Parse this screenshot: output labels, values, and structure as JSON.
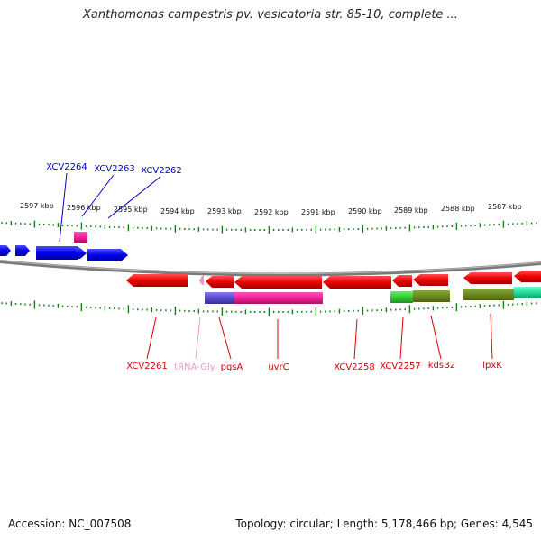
{
  "title": "Xanthomonas campestris pv. vesicatoria str. 85-10, complete ...",
  "footer": {
    "accession": "Accession: NC_007508",
    "topology": "Topology: circular; Length: 5,178,466 bp; Genes: 4,545"
  },
  "colors": {
    "backbone": "#888888",
    "ticks": "#1a7a1a",
    "forward_gene": "#0000ee",
    "reverse_gene": "#ee0000",
    "trna": "#ee88cc",
    "domain_purple": "#6655cc",
    "domain_magenta": "#ee2299",
    "domain_olive": "#6b8a22",
    "domain_green": "#33cc33",
    "domain_teal": "#22dd99"
  },
  "ruler_labels": [
    "2597 kbp",
    "2596 kbp",
    "2595 kbp",
    "2594 kbp",
    "2593 kbp",
    "2592 kbp",
    "2591 kbp",
    "2590 kbp",
    "2589 kbp",
    "2588 kbp",
    "2587 kbp"
  ],
  "forward_genes": [
    {
      "name": "XCV2264",
      "color": "#0000cc"
    },
    {
      "name": "XCV2263",
      "color": "#0000cc"
    },
    {
      "name": "XCV2262",
      "color": "#0000cc"
    }
  ],
  "reverse_genes": [
    {
      "name": "XCV2261",
      "color": "#dd0000"
    },
    {
      "name": "tRNA-Gly",
      "color": "#ee99cc"
    },
    {
      "name": "pgsA",
      "color": "#dd0000"
    },
    {
      "name": "uvrC",
      "color": "#dd0000"
    },
    {
      "name": "XCV2258",
      "color": "#dd0000"
    },
    {
      "name": "XCV2257",
      "color": "#dd0000"
    },
    {
      "name": "kdsB2",
      "color": "#dd0000"
    },
    {
      "name": "lpxK",
      "color": "#dd0000"
    }
  ]
}
